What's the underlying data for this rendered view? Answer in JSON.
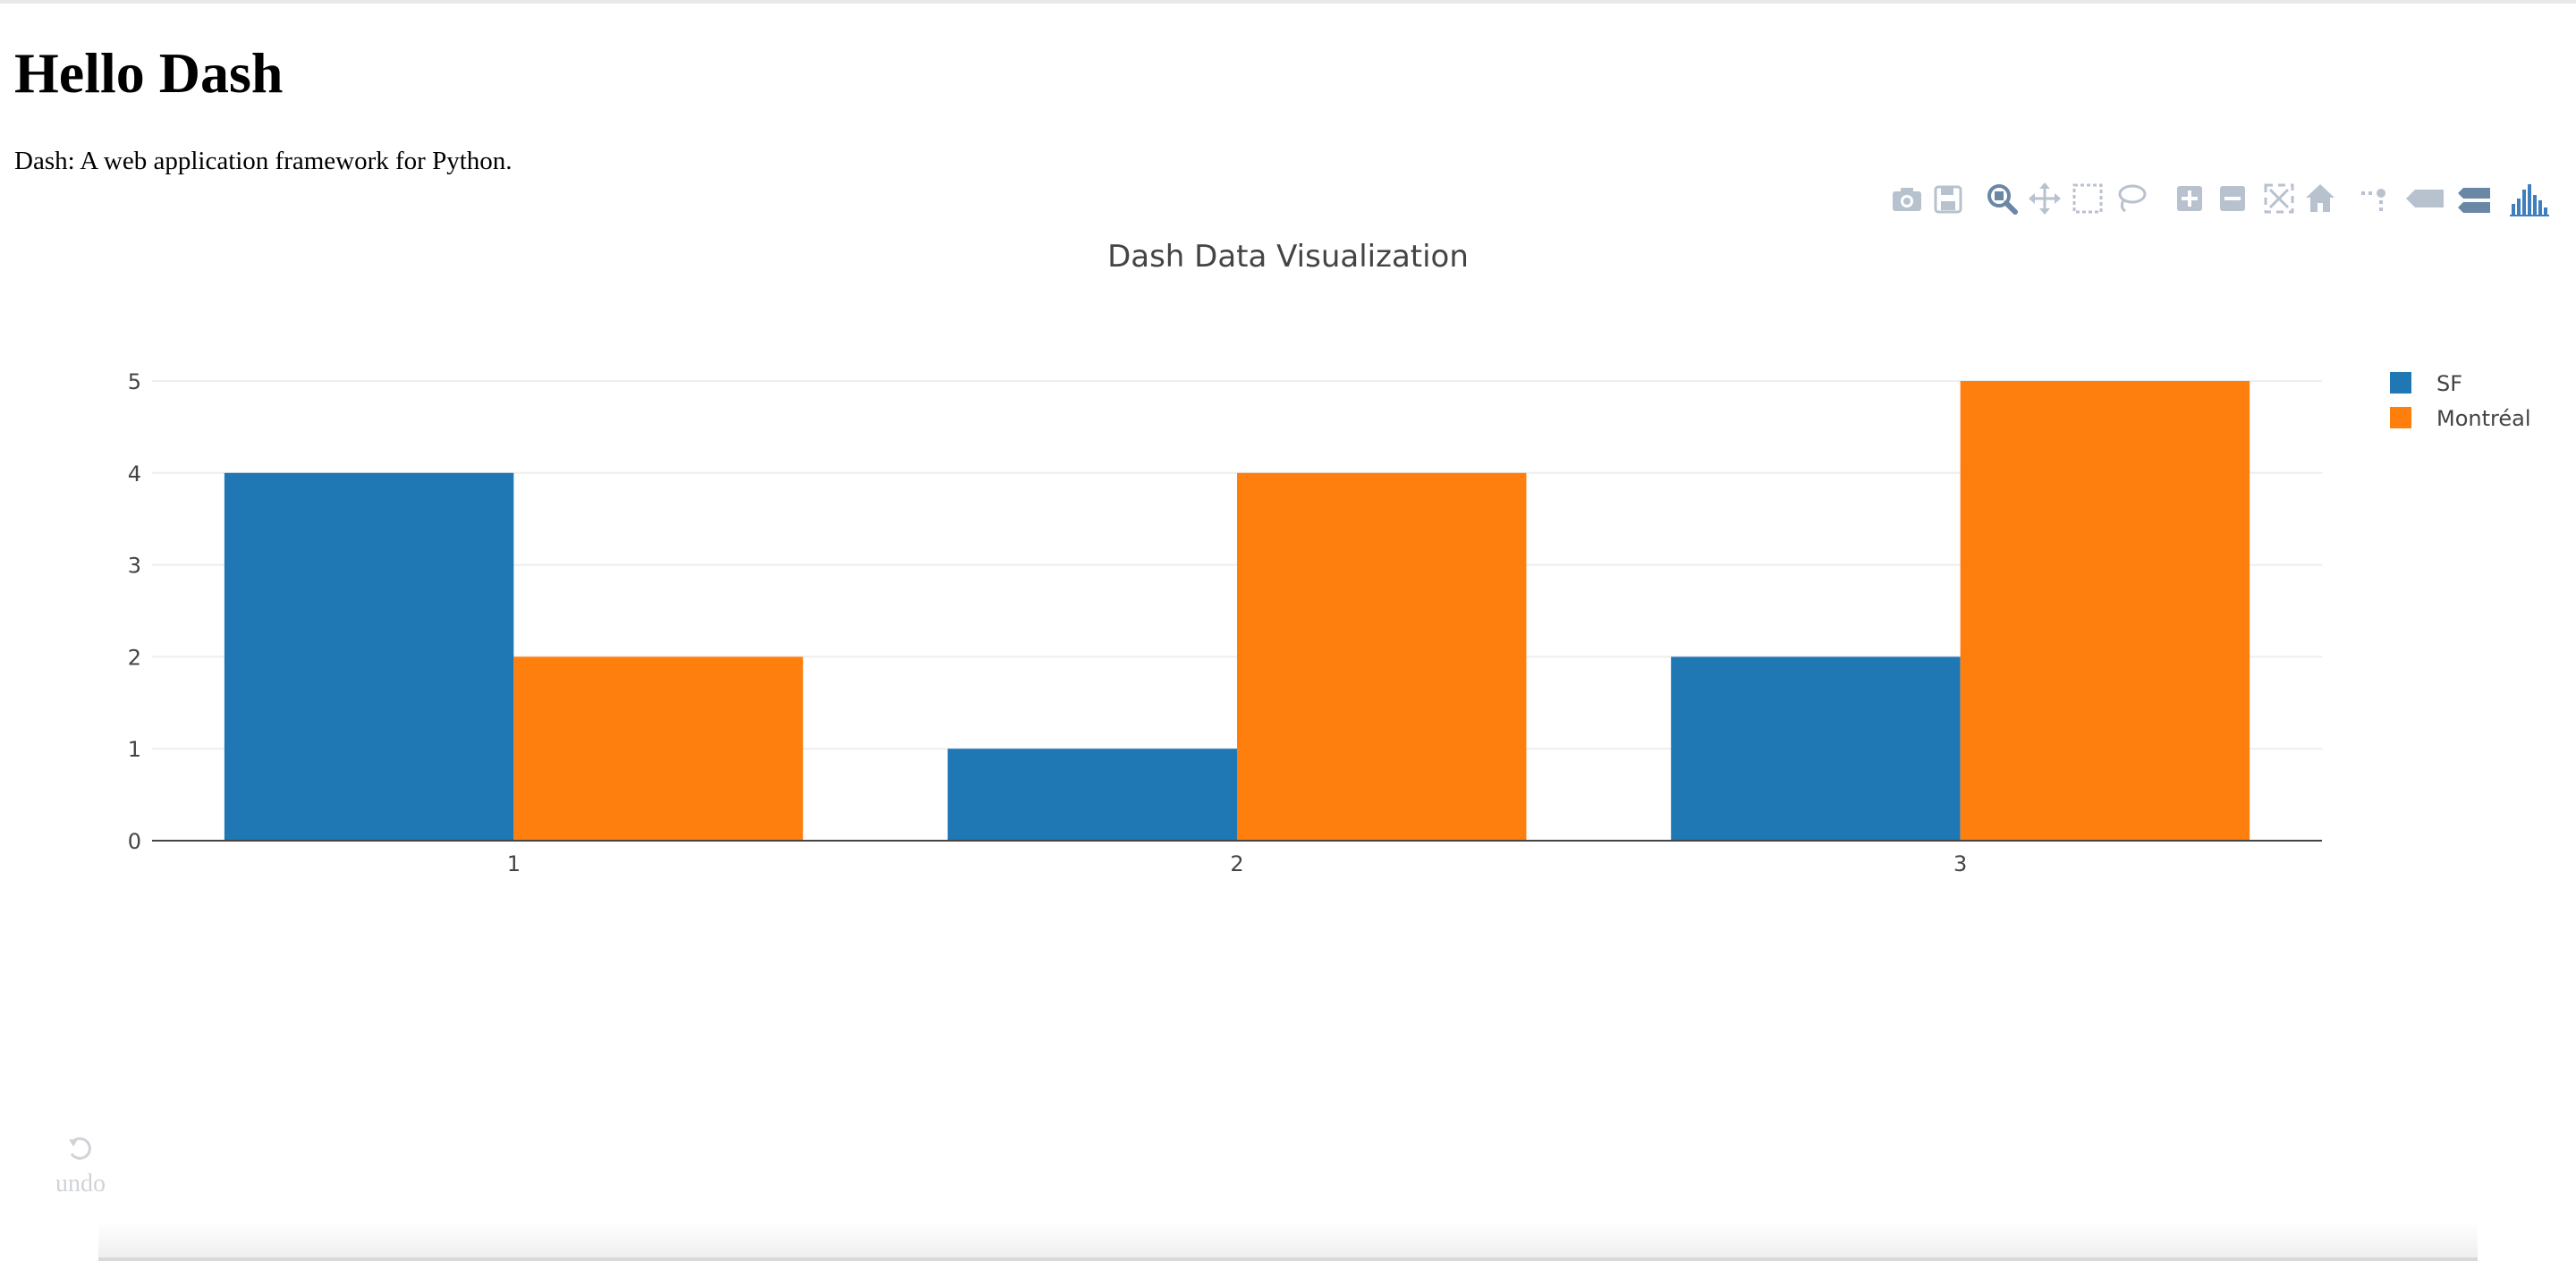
{
  "page": {
    "title": "Hello Dash",
    "description": "Dash: A web application framework for Python."
  },
  "modebar": {
    "buttons": [
      {
        "name": "camera-icon"
      },
      {
        "name": "save-icon"
      },
      {
        "name": "zoom-icon"
      },
      {
        "name": "pan-icon"
      },
      {
        "name": "box-select-icon"
      },
      {
        "name": "lasso-icon"
      },
      {
        "name": "zoom-in-icon"
      },
      {
        "name": "zoom-out-icon"
      },
      {
        "name": "autoscale-icon"
      },
      {
        "name": "home-icon"
      },
      {
        "name": "spike-lines-icon"
      },
      {
        "name": "hover-closest-icon"
      },
      {
        "name": "hover-compare-icon"
      },
      {
        "name": "plotly-logo-icon"
      }
    ],
    "icon_color": "#b8c2cf",
    "active_color": "#6a87a5",
    "logo_color": "#3f7fbf"
  },
  "chart_data": {
    "type": "bar",
    "title": "Dash Data Visualization",
    "categories": [
      "1",
      "2",
      "3"
    ],
    "series": [
      {
        "name": "SF",
        "values": [
          4,
          1,
          2
        ],
        "color": "#1f77b4"
      },
      {
        "name": "Montréal",
        "values": [
          2,
          4,
          5
        ],
        "color": "#ff7f0e"
      }
    ],
    "ylim": [
      0,
      5
    ],
    "yticks": [
      "0",
      "1",
      "2",
      "3",
      "4",
      "5"
    ],
    "grid": true,
    "legend_position": "top-right"
  },
  "undo": {
    "label": "undo"
  }
}
